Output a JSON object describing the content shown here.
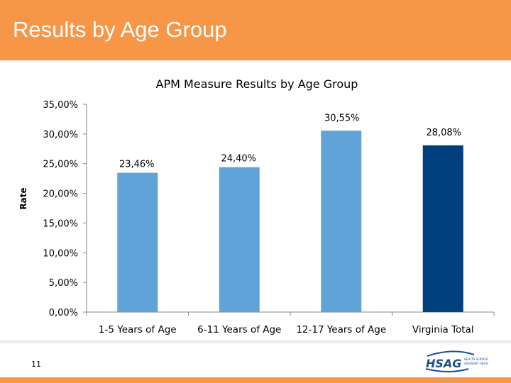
{
  "header": {
    "title": "Results by Age Group"
  },
  "footer": {
    "page_number": "11",
    "logo_text": "HSAG",
    "logo_subtext": "HEALTH SERVICES ADVISORY GROUP"
  },
  "colors": {
    "header": "#F79646",
    "bar_light": "#5FA3D9",
    "bar_dark": "#003F7D"
  },
  "chart_data": {
    "type": "bar",
    "title": "APM Measure Results by Age Group",
    "ylabel": "Rate",
    "xlabel": "",
    "categories": [
      "1-5 Years of Age",
      "6-11 Years of Age",
      "12-17 Years of Age",
      "Virginia Total"
    ],
    "values": [
      23.46,
      24.4,
      30.55,
      28.08
    ],
    "data_labels": [
      "23,46%",
      "24,40%",
      "30,55%",
      "28,08%"
    ],
    "ylim": [
      0,
      35
    ],
    "yticks": [
      "0,00%",
      "5,00%",
      "10,00%",
      "15,00%",
      "20,00%",
      "25,00%",
      "30,00%",
      "35,00%"
    ],
    "grid": false,
    "legend": "none"
  }
}
